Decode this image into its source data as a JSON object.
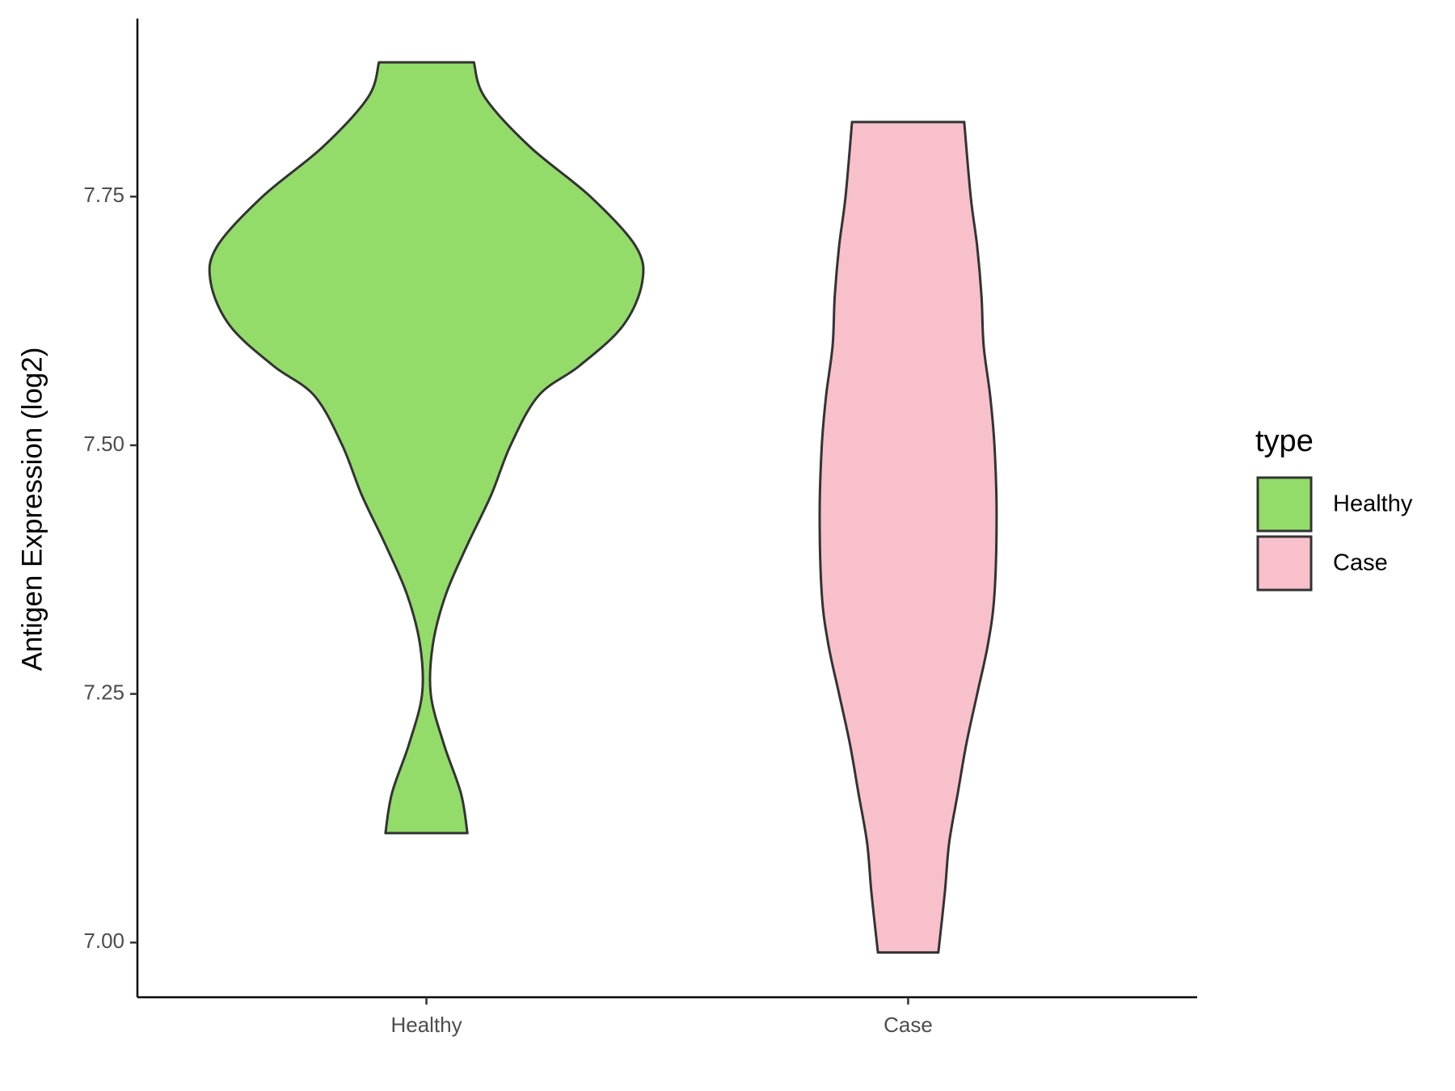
{
  "chart_data": {
    "type": "violin",
    "y_label": "Antigen Expression (log2)",
    "categories": [
      "Healthy",
      "Case"
    ],
    "legend_title": "type",
    "legend": "right",
    "ylim": [
      6.945,
      7.929
    ],
    "yticks": [
      {
        "value": 7,
        "label": "7.00"
      },
      {
        "value": 7.25,
        "label": "7.25"
      },
      {
        "value": 7.5,
        "label": "7.50"
      },
      {
        "value": 7.75,
        "label": "7.75"
      }
    ],
    "series": [
      {
        "name": "Healthy",
        "color": "#94dc6a",
        "y": [
          7.885,
          7.85,
          7.8,
          7.75,
          7.7,
          7.664,
          7.62,
          7.58,
          7.55,
          7.5,
          7.45,
          7.4,
          7.35,
          7.3,
          7.25,
          7.2,
          7.15,
          7.11
        ],
        "widths": [
          0.22,
          0.27,
          0.48,
          0.76,
          0.97,
          1,
          0.91,
          0.71,
          0.52,
          0.39,
          0.3,
          0.19,
          0.09,
          0.03,
          0.02,
          0.08,
          0.16,
          0.19
        ]
      },
      {
        "name": "Case",
        "color": "#f8c0cb",
        "y": [
          7.825,
          7.75,
          7.7,
          7.65,
          7.6,
          7.55,
          7.5,
          7.43,
          7.35,
          7.3,
          7.25,
          7.2,
          7.15,
          7.1,
          7.05,
          6.99
        ],
        "widths": [
          0.26,
          0.29,
          0.32,
          0.34,
          0.35,
          0.38,
          0.4,
          0.41,
          0.4,
          0.37,
          0.32,
          0.27,
          0.23,
          0.19,
          0.17,
          0.14
        ]
      }
    ]
  }
}
